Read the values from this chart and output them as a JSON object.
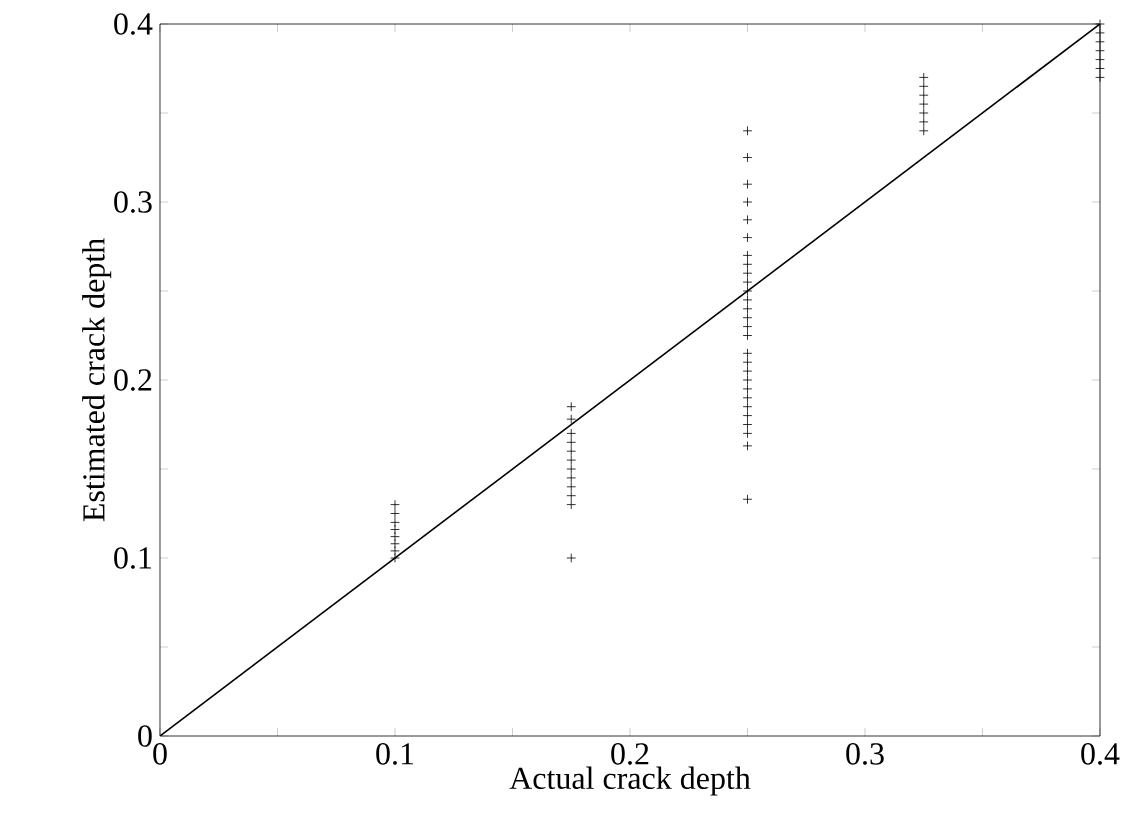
{
  "chart_data": {
    "type": "scatter",
    "xlabel": "Actual crack depth",
    "ylabel": "Estimated crack depth",
    "xlim": [
      0,
      0.4
    ],
    "ylim": [
      0,
      0.4
    ],
    "xticks": [
      0,
      {
        "value": 0.05,
        "label": null
      },
      0.1,
      {
        "value": 0.15,
        "label": null
      },
      0.2,
      {
        "value": 0.25,
        "label": null
      },
      0.3,
      {
        "value": 0.35,
        "label": null
      },
      0.4
    ],
    "yticks": [
      0,
      {
        "value": 0.05,
        "label": null
      },
      0.1,
      {
        "value": 0.15,
        "label": null
      },
      0.2,
      {
        "value": 0.25,
        "label": null
      },
      0.3,
      {
        "value": 0.35,
        "label": null
      },
      0.4
    ],
    "series": [
      {
        "marker": "cross",
        "color": "#000000",
        "x": [
          0.1,
          0.1,
          0.1,
          0.1,
          0.1,
          0.1,
          0.1,
          0.1,
          0.175,
          0.175,
          0.175,
          0.175,
          0.175,
          0.175,
          0.175,
          0.175,
          0.175,
          0.175,
          0.175,
          0.175,
          0.25,
          0.25,
          0.25,
          0.25,
          0.25,
          0.25,
          0.25,
          0.25,
          0.25,
          0.25,
          0.25,
          0.25,
          0.25,
          0.25,
          0.25,
          0.25,
          0.25,
          0.25,
          0.25,
          0.25,
          0.25,
          0.25,
          0.25,
          0.25,
          0.25,
          0.25,
          0.25,
          0.25,
          0.325,
          0.325,
          0.325,
          0.325,
          0.325,
          0.325,
          0.325,
          0.4,
          0.4,
          0.4,
          0.4,
          0.4,
          0.4,
          0.4
        ],
        "values": [
          0.1,
          0.104,
          0.108,
          0.112,
          0.116,
          0.12,
          0.125,
          0.13,
          0.1,
          0.13,
          0.135,
          0.14,
          0.145,
          0.15,
          0.155,
          0.16,
          0.165,
          0.17,
          0.178,
          0.185,
          0.133,
          0.163,
          0.17,
          0.175,
          0.18,
          0.185,
          0.19,
          0.195,
          0.2,
          0.205,
          0.21,
          0.215,
          0.225,
          0.23,
          0.235,
          0.24,
          0.245,
          0.25,
          0.255,
          0.26,
          0.265,
          0.27,
          0.28,
          0.29,
          0.3,
          0.31,
          0.325,
          0.34,
          0.34,
          0.345,
          0.35,
          0.355,
          0.36,
          0.365,
          0.37,
          0.37,
          0.375,
          0.38,
          0.385,
          0.39,
          0.395,
          0.4
        ]
      },
      {
        "type": "line",
        "marker": "none",
        "color": "#000000",
        "x": [
          0,
          0.4
        ],
        "values": [
          0,
          0.4
        ]
      }
    ]
  }
}
